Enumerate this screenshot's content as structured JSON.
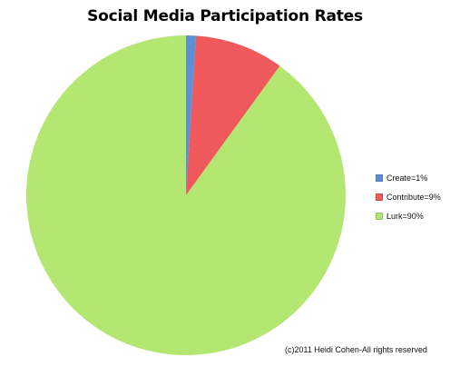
{
  "chart_data": {
    "type": "pie",
    "title": "Social Media Participation Rates",
    "slices": [
      {
        "label": "Create=1%",
        "value": 1,
        "color": "#5b8fd6"
      },
      {
        "label": "Contribute=9%",
        "value": 9,
        "color": "#f0595c"
      },
      {
        "label": "Lurk=90%",
        "value": 90,
        "color": "#b4e672"
      }
    ],
    "legend_position": "right"
  },
  "footer": {
    "copyright": "(c)2011 Heidi Cohen-All rights reserved"
  }
}
